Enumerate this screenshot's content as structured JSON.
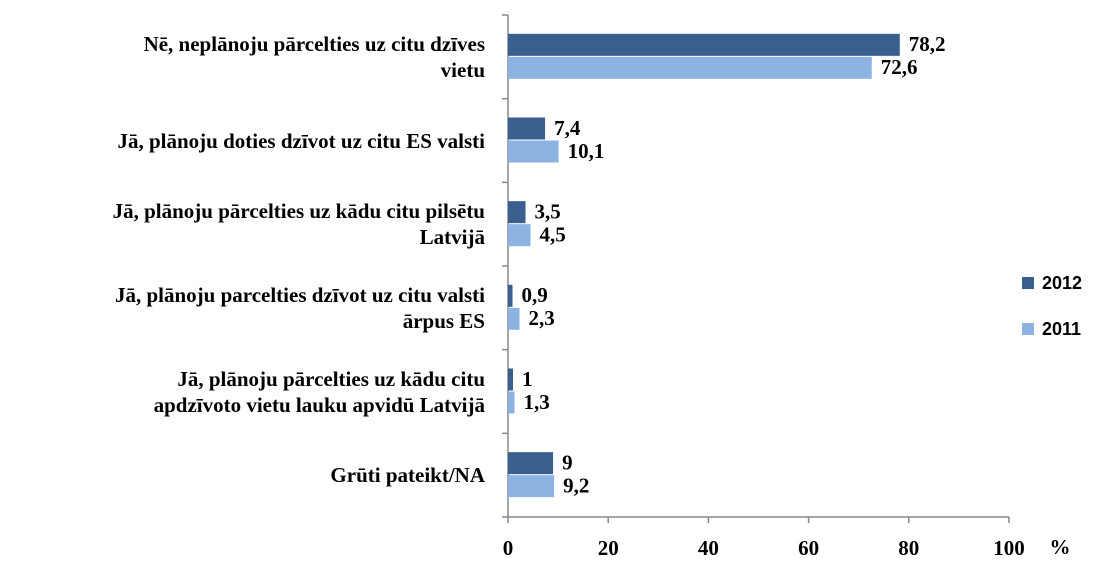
{
  "chart_data": {
    "type": "bar",
    "orientation": "horizontal",
    "categories": [
      "Nē, neplānoju pārcelties uz citu dzīves\nvietu",
      "Jā, plānoju doties dzīvot uz citu ES valsti",
      "Jā, plānoju pārcelties uz kādu citu pilsētu\nLatvijā",
      "Jā, plānoju parcelties dzīvot uz citu valsti\nārpus ES",
      "Jā, plānoju pārcelties uz kādu citu\napdzīvoto vietu lauku apvidū Latvijā",
      "Grūti pateikt/NA"
    ],
    "series": [
      {
        "name": "2012",
        "color": "#3a5f8f",
        "values": [
          78.2,
          7.4,
          3.5,
          0.9,
          1,
          9
        ],
        "value_labels": [
          "78,2",
          "7,4",
          "3,5",
          "0,9",
          "1",
          "9"
        ]
      },
      {
        "name": "2011",
        "color": "#8db3e2",
        "values": [
          72.6,
          10.1,
          4.5,
          2.3,
          1.3,
          9.2
        ],
        "value_labels": [
          "72,6",
          "10,1",
          "4,5",
          "2,3",
          "1,3",
          "9,2"
        ]
      }
    ],
    "xlim": [
      0,
      100
    ],
    "xticks": [
      0,
      20,
      40,
      60,
      80,
      100
    ],
    "xlabel": "%",
    "legend": "right"
  }
}
